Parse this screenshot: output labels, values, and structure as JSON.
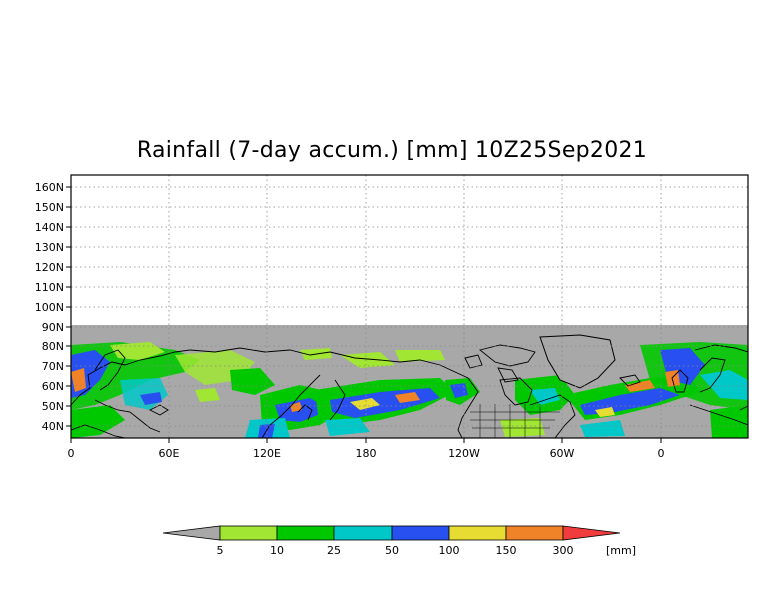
{
  "map": {
    "title": "Rainfall (7-day accum.) [mm] 10Z25Sep2021",
    "lat_labels": [
      "160N",
      "150N",
      "140N",
      "130N",
      "120N",
      "110N",
      "100N",
      "90N",
      "80N",
      "70N",
      "60N",
      "50N",
      "40N"
    ],
    "lon_labels": [
      "0",
      "60E",
      "120E",
      "180",
      "120W",
      "60W",
      "0"
    ],
    "data_region": {
      "lat_min": 35,
      "lat_max": 90,
      "note_colors": {
        "no_data_mask": "#a8a8a8",
        "continent_outline": "#000000"
      }
    }
  },
  "legend": {
    "unit": "[mm]",
    "thresholds": [
      "5",
      "10",
      "25",
      "50",
      "100",
      "150",
      "300"
    ],
    "colors": [
      "#a8a8a8",
      "#a0e632",
      "#00c800",
      "#00c8c8",
      "#2850f0",
      "#e6dc32",
      "#f08228",
      "#f03c3c"
    ]
  }
}
